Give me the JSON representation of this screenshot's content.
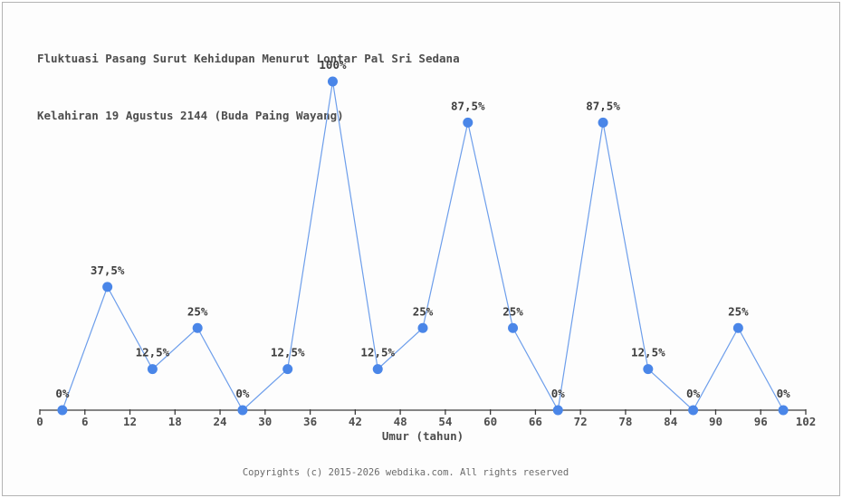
{
  "chart_data": {
    "type": "line",
    "title": "Fluktuasi Pasang Surut Kehidupan Menurut Lontar Pal Sri Sedana Kelahiran 19 Agustus 2144 (Buda Paing Wayang)",
    "title_line1": "Fluktuasi Pasang Surut Kehidupan Menurut Lontar Pal Sri Sedana",
    "title_line2": "Kelahiran 19 Agustus 2144 (Buda Paing Wayang)",
    "xlabel": "Umur (tahun)",
    "ylabel": "",
    "xlim": [
      0,
      102
    ],
    "ylim": [
      0,
      100
    ],
    "x_ticks": [
      0,
      6,
      12,
      18,
      24,
      30,
      36,
      42,
      48,
      54,
      60,
      66,
      72,
      78,
      84,
      90,
      96,
      102
    ],
    "grid": false,
    "legend": false,
    "x": [
      3,
      9,
      15,
      21,
      27,
      33,
      39,
      45,
      51,
      57,
      63,
      69,
      75,
      81,
      87,
      93,
      99
    ],
    "values": [
      0,
      37.5,
      12.5,
      25,
      0,
      12.5,
      100,
      12.5,
      25,
      87.5,
      25,
      0,
      87.5,
      12.5,
      0,
      25,
      0
    ],
    "point_labels": [
      "0%",
      "37,5%",
      "12,5%",
      "25%",
      "0%",
      "12,5%",
      "100%",
      "12,5%",
      "25%",
      "87,5%",
      "25%",
      "0%",
      "87,5%",
      "12,5%",
      "0%",
      "25%",
      "0%"
    ]
  },
  "colors": {
    "marker": "#4a86e8",
    "line": "#6d9eeb",
    "axis": "#3d3d3d",
    "tick_label": "#4d4d4d",
    "point_label": "#3d3d3d",
    "title": "#4d4d4d",
    "footer": "#6b6b6b",
    "background": "#fdfdfd",
    "border": "#b3b3b3"
  },
  "footer": {
    "text": "Copyrights (c) 2015-2026 webdika.com. All rights reserved"
  }
}
